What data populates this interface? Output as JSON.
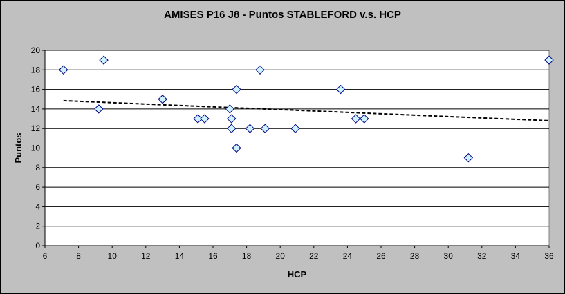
{
  "chart_data": {
    "type": "scatter",
    "title": "AMISES P16 J8 - Puntos STABLEFORD v.s. HCP",
    "xlabel": "HCP",
    "ylabel": "Puntos",
    "xlim": [
      6,
      36
    ],
    "ylim": [
      0,
      20
    ],
    "x_ticks": [
      6,
      8,
      10,
      12,
      14,
      16,
      18,
      20,
      22,
      24,
      26,
      28,
      30,
      32,
      34,
      36
    ],
    "y_ticks": [
      0,
      2,
      4,
      6,
      8,
      10,
      12,
      14,
      16,
      18,
      20
    ],
    "grid": "horizontal",
    "legend": "none",
    "marker": "diamond",
    "marker_fill": "#ccf2ff",
    "marker_edge": "#000080",
    "plot_background": "#ffffff",
    "chart_background": "#c0c0c0",
    "trendline": {
      "style": "dashed",
      "color": "#000000",
      "start": [
        7.1,
        14.85
      ],
      "end": [
        36,
        12.8
      ]
    },
    "points": [
      {
        "x": 7.1,
        "y": 18
      },
      {
        "x": 9.2,
        "y": 14
      },
      {
        "x": 9.5,
        "y": 19
      },
      {
        "x": 13.0,
        "y": 15
      },
      {
        "x": 15.1,
        "y": 13
      },
      {
        "x": 15.5,
        "y": 13
      },
      {
        "x": 17.0,
        "y": 14
      },
      {
        "x": 17.1,
        "y": 13
      },
      {
        "x": 17.1,
        "y": 12
      },
      {
        "x": 17.4,
        "y": 16
      },
      {
        "x": 17.4,
        "y": 10
      },
      {
        "x": 18.2,
        "y": 12
      },
      {
        "x": 18.8,
        "y": 18
      },
      {
        "x": 19.1,
        "y": 12
      },
      {
        "x": 20.9,
        "y": 12
      },
      {
        "x": 23.6,
        "y": 16
      },
      {
        "x": 24.5,
        "y": 13
      },
      {
        "x": 25.0,
        "y": 13
      },
      {
        "x": 31.2,
        "y": 9
      },
      {
        "x": 36.0,
        "y": 19
      }
    ]
  }
}
